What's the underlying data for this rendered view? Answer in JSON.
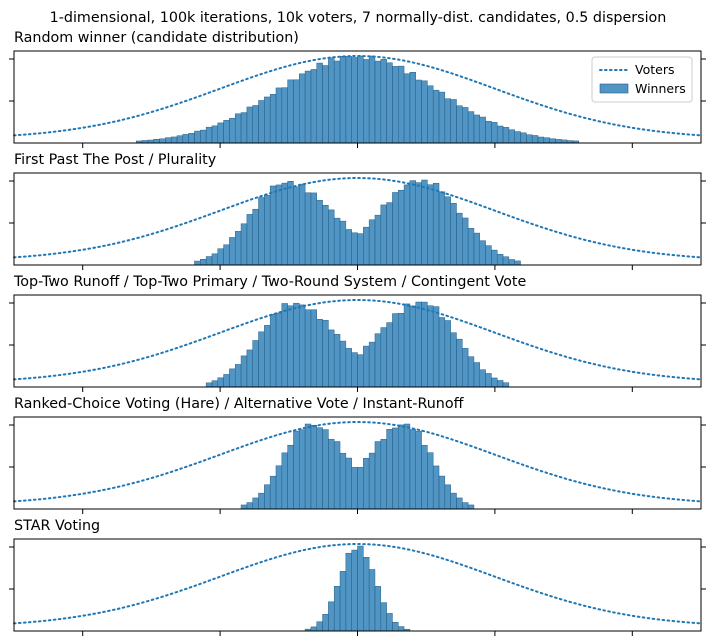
{
  "figure": {
    "suptitle": "1-dimensional, 100k iterations, 10k voters, 7 normally-dist. candidates, 0.5 dispersion"
  },
  "legend": {
    "voters_label": "Voters",
    "winners_label": "Winners",
    "placement": "top-right",
    "voters_color": "#1f77b4",
    "winners_color": "#1f77b4"
  },
  "chart_data": [
    {
      "type": "histogram",
      "title": "Random winner (candidate distribution)",
      "series": [
        {
          "name": "Voters",
          "kind": "line",
          "style": "dotted",
          "distribution": "normal",
          "mean": 0,
          "sd": 1
        },
        {
          "name": "Winners",
          "kind": "histogram",
          "shape": "unimodal",
          "mean": 0,
          "sd": 0.58,
          "x_range": [
            -1.6,
            1.6
          ]
        }
      ],
      "xlim": [
        -2.5,
        2.5
      ],
      "grid": false,
      "legend": true
    },
    {
      "type": "histogram",
      "title": "First Past The Post / Plurality",
      "series": [
        {
          "name": "Voters",
          "kind": "line",
          "style": "dotted",
          "distribution": "normal",
          "mean": 0,
          "sd": 1
        },
        {
          "name": "Winners",
          "kind": "histogram",
          "shape": "bimodal",
          "peaks": [
            -0.52,
            0.47
          ],
          "peak_heights": [
            0.97,
            1.0
          ],
          "center_dip": 0.34,
          "x_range": [
            -1.2,
            1.2
          ]
        }
      ],
      "xlim": [
        -2.5,
        2.5
      ],
      "grid": false,
      "legend": false
    },
    {
      "type": "histogram",
      "title": "Top-Two Runoff / Top-Two Primary / Two-Round System / Contingent Vote",
      "series": [
        {
          "name": "Voters",
          "kind": "line",
          "style": "dotted",
          "distribution": "normal",
          "mean": 0,
          "sd": 1
        },
        {
          "name": "Winners",
          "kind": "histogram",
          "shape": "bimodal",
          "peaks": [
            -0.47,
            0.47
          ],
          "peak_heights": [
            0.98,
            1.0
          ],
          "center_dip": 0.36,
          "x_range": [
            -1.12,
            1.12
          ]
        }
      ],
      "xlim": [
        -2.5,
        2.5
      ],
      "grid": false,
      "legend": false
    },
    {
      "type": "histogram",
      "title": "Ranked-Choice Voting (Hare) / Alternative Vote / Instant-Runoff",
      "series": [
        {
          "name": "Voters",
          "kind": "line",
          "style": "dotted",
          "distribution": "normal",
          "mean": 0,
          "sd": 1
        },
        {
          "name": "Winners",
          "kind": "histogram",
          "shape": "bimodal",
          "peaks": [
            -0.35,
            0.35
          ],
          "peak_heights": [
            1.0,
            1.0
          ],
          "center_dip": 0.45,
          "x_range": [
            -0.85,
            0.85
          ]
        }
      ],
      "xlim": [
        -2.5,
        2.5
      ],
      "grid": false,
      "legend": false
    },
    {
      "type": "histogram",
      "title": "STAR Voting",
      "series": [
        {
          "name": "Voters",
          "kind": "line",
          "style": "dotted",
          "distribution": "normal",
          "mean": 0,
          "sd": 1
        },
        {
          "name": "Winners",
          "kind": "histogram",
          "shape": "unimodal",
          "mean": 0,
          "sd": 0.13,
          "x_range": [
            -0.4,
            0.4
          ]
        }
      ],
      "xlim": [
        -2.5,
        2.5
      ],
      "grid": false,
      "legend": false
    }
  ]
}
